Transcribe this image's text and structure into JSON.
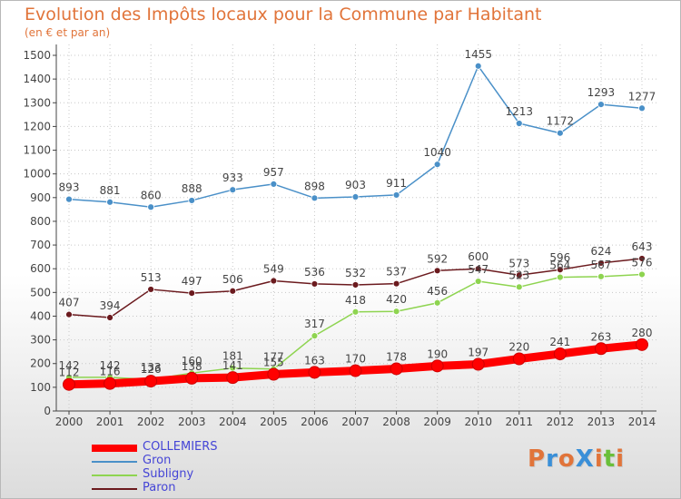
{
  "title": "Evolution des Impôts locaux pour la Commune par Habitant",
  "subtitle": "(en € et par an)",
  "brand": "ProXiti",
  "colors": {
    "title": "#e1743a",
    "axis": "#444444",
    "grid": "#c8c8c8",
    "legend_text": "#4545d6"
  },
  "chart_data": {
    "type": "line",
    "x": [
      "2000",
      "2001",
      "2002",
      "2003",
      "2004",
      "2005",
      "2006",
      "2007",
      "2008",
      "2009",
      "2010",
      "2011",
      "2012",
      "2013",
      "2014"
    ],
    "ylim": [
      0,
      1500
    ],
    "yticks": [
      0,
      100,
      200,
      300,
      400,
      500,
      600,
      700,
      800,
      900,
      1000,
      1100,
      1200,
      1300,
      1400,
      1500
    ],
    "grid": true,
    "legend_position": "bottom-left",
    "series": [
      {
        "name": "COLLEMIERS",
        "color": "#ff0000",
        "values": [
          112,
          116,
          126,
          138,
          141,
          155,
          163,
          170,
          178,
          190,
          197,
          220,
          241,
          263,
          280
        ],
        "labels": [
          "112",
          "116",
          "126",
          "138",
          "141",
          "155",
          "163",
          "170",
          "178",
          "190",
          "197",
          "220",
          "241",
          "263",
          "280"
        ]
      },
      {
        "name": "Gron",
        "color": "#4a90c8",
        "values": [
          893,
          881,
          860,
          888,
          933,
          957,
          898,
          903,
          911,
          1040,
          1455,
          1213,
          1172,
          1293,
          1277
        ],
        "labels": [
          "893",
          "881",
          "860",
          "888",
          "933",
          "957",
          "898",
          "903",
          "911",
          "1040",
          "1455",
          "1213",
          "1172",
          "1293",
          "1277"
        ]
      },
      {
        "name": "Subligny",
        "color": "#8ed450",
        "values": [
          142,
          142,
          133,
          160,
          181,
          177,
          317,
          418,
          420,
          456,
          547,
          523,
          564,
          567,
          576
        ],
        "labels": [
          "142",
          "142",
          "133",
          "160",
          "181",
          "177",
          "317",
          "418",
          "420",
          "456",
          "547",
          "523",
          "564",
          "567",
          "576"
        ]
      },
      {
        "name": "Paron",
        "color": "#6b1a1e",
        "values": [
          407,
          394,
          513,
          497,
          506,
          549,
          536,
          532,
          537,
          592,
          600,
          573,
          596,
          624,
          643
        ],
        "labels": [
          "407",
          "394",
          "513",
          "497",
          "506",
          "549",
          "536",
          "532",
          "537",
          "592",
          "600",
          "573",
          "596",
          "624",
          "643"
        ]
      }
    ]
  }
}
